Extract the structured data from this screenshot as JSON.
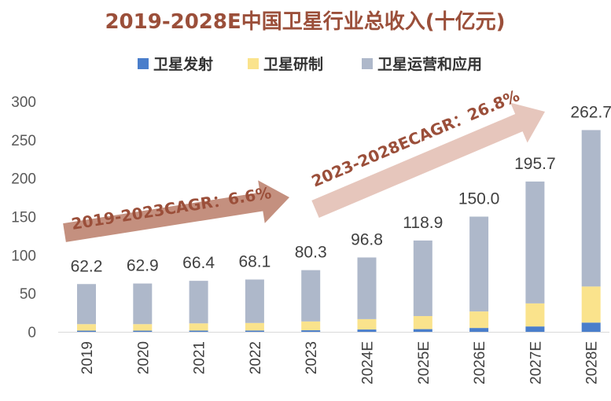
{
  "chart_data": {
    "type": "bar",
    "stacked": true,
    "title": "2019-2028E中国卫星行业总收入(十亿元)",
    "categories": [
      "2019",
      "2020",
      "2021",
      "2022",
      "2023",
      "2024E",
      "2025E",
      "2026E",
      "2027E",
      "2028E"
    ],
    "series": [
      {
        "name": "卫星发射",
        "color": "#4a7ecb",
        "values": [
          1.5,
          1.5,
          1.6,
          1.7,
          2.0,
          3.0,
          3.5,
          5.0,
          7.0,
          12.0
        ]
      },
      {
        "name": "卫星研制",
        "color": "#fae38c",
        "values": [
          8.5,
          8.5,
          9.4,
          9.8,
          11.5,
          13.5,
          17.0,
          21.5,
          30.0,
          47.0
        ]
      },
      {
        "name": "卫星运营和应用",
        "color": "#aeb8ca",
        "values": [
          52.2,
          52.9,
          55.4,
          56.6,
          66.8,
          80.3,
          98.4,
          123.5,
          158.7,
          203.7
        ]
      }
    ],
    "totals": [
      "62.2",
      "62.9",
      "66.4",
      "68.1",
      "80.3",
      "96.8",
      "118.9",
      "150.0",
      "195.7",
      "262.7"
    ],
    "ylim": [
      0,
      300
    ],
    "yticks": [
      "0",
      "50",
      "100",
      "150",
      "200",
      "250",
      "300"
    ],
    "legend": "top",
    "grid": false,
    "annotations": [
      {
        "text": "2019-2023CAGR：6.6%"
      },
      {
        "text": "2023-2028ECAGR：26.8%"
      }
    ]
  }
}
